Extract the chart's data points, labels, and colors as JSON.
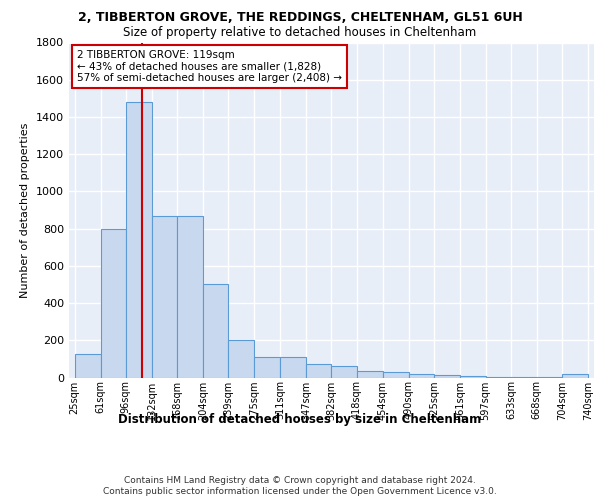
{
  "title1": "2, TIBBERTON GROVE, THE REDDINGS, CHELTENHAM, GL51 6UH",
  "title2": "Size of property relative to detached houses in Cheltenham",
  "xlabel": "Distribution of detached houses by size in Cheltenham",
  "ylabel": "Number of detached properties",
  "bin_edges": [
    25,
    61,
    96,
    132,
    168,
    204,
    239,
    275,
    311,
    347,
    382,
    418,
    454,
    490,
    525,
    561,
    597,
    633,
    668,
    704,
    740
  ],
  "bar_heights": [
    125,
    800,
    1480,
    870,
    870,
    500,
    200,
    110,
    110,
    70,
    60,
    35,
    30,
    20,
    15,
    10,
    5,
    5,
    5,
    20
  ],
  "bar_color": "#c8d9ef",
  "bar_edge_color": "#5b9bd5",
  "property_size": 119,
  "vline_color": "#cc0000",
  "annotation_line1": "2 TIBBERTON GROVE: 119sqm",
  "annotation_line2": "← 43% of detached houses are smaller (1,828)",
  "annotation_line3": "57% of semi-detached houses are larger (2,408) →",
  "annotation_box_color": "#cc0000",
  "annotation_bg_color": "#ffffff",
  "footer1": "Contains HM Land Registry data © Crown copyright and database right 2024.",
  "footer2": "Contains public sector information licensed under the Open Government Licence v3.0.",
  "bg_color": "#e8eef8",
  "grid_color": "#ffffff",
  "ylim": [
    0,
    1800
  ],
  "yticks": [
    0,
    200,
    400,
    600,
    800,
    1000,
    1200,
    1400,
    1600,
    1800
  ],
  "fig_bg": "#ffffff"
}
